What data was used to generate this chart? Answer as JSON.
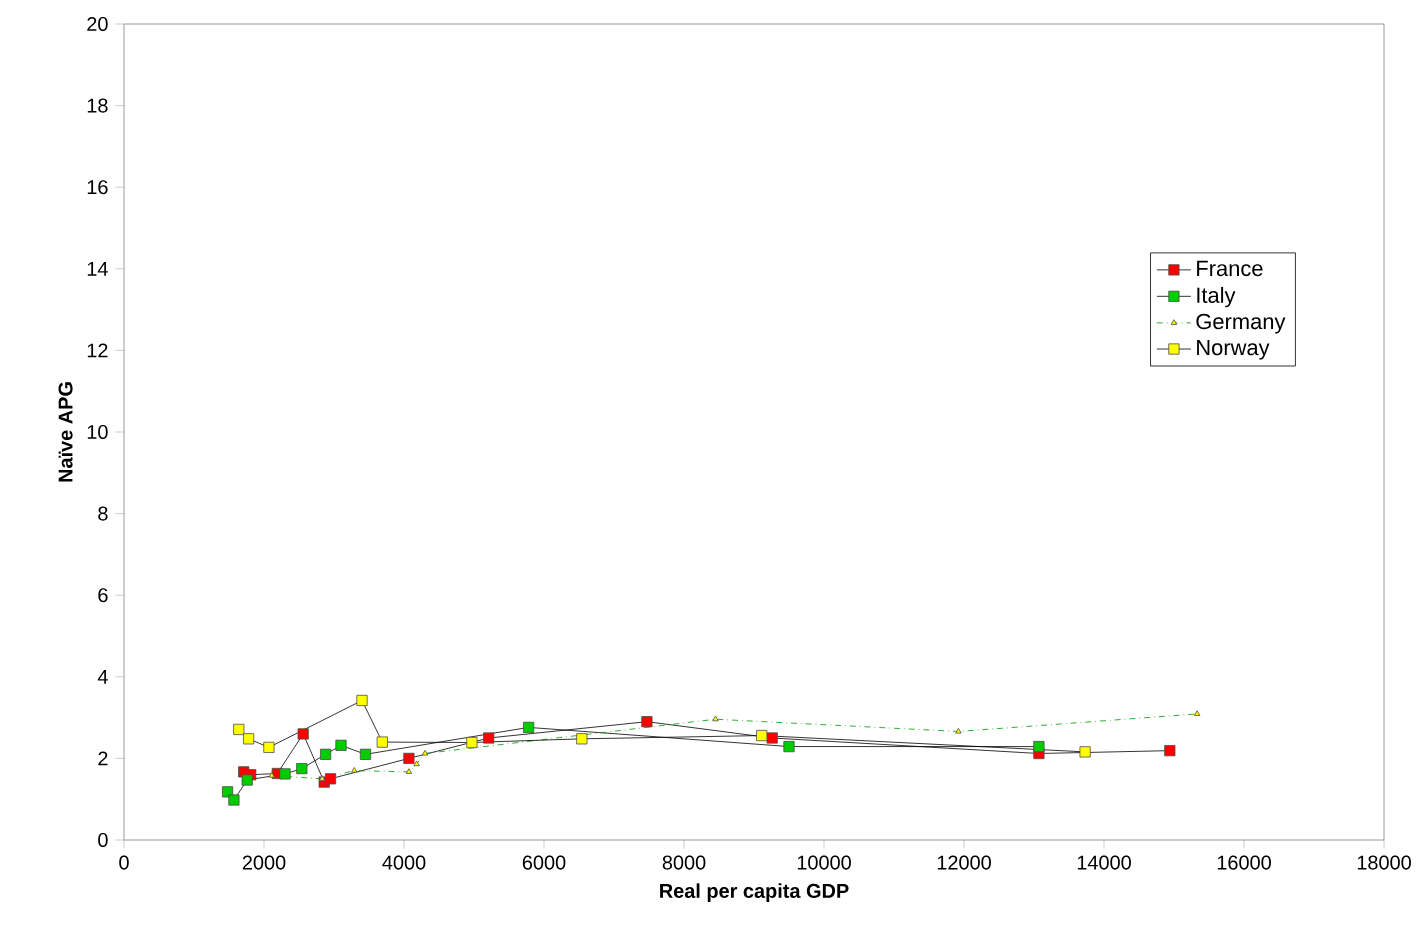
{
  "chart_data": {
    "type": "line",
    "xlabel": "Real per capita GDP",
    "ylabel": "Naïve APG",
    "xlim": [
      0,
      18000
    ],
    "xticks": [
      0,
      2000,
      4000,
      6000,
      8000,
      10000,
      12000,
      14000,
      16000,
      18000
    ],
    "ylim": [
      0,
      20
    ],
    "yticks": [
      0,
      2,
      4,
      6,
      8,
      10,
      12,
      14,
      16,
      18,
      20
    ],
    "grid": false,
    "legend": "right",
    "series": [
      {
        "name": "France",
        "color": "#ff0000",
        "marker": "square",
        "line_style": "solid",
        "x": [
          1710,
          1810,
          2190,
          2560,
          2860,
          2950,
          4070,
          5210,
          7470,
          9260,
          13070,
          14940
        ],
        "values": [
          1.67,
          1.6,
          1.63,
          2.6,
          1.42,
          1.5,
          2.0,
          2.5,
          2.9,
          2.5,
          2.12,
          2.19
        ]
      },
      {
        "name": "Italy",
        "color": "#00cc00",
        "marker": "square",
        "line_style": "solid",
        "x": [
          1480,
          1570,
          1760,
          2300,
          2540,
          2880,
          3100,
          3450,
          5780,
          9500,
          13070
        ],
        "values": [
          1.18,
          0.98,
          1.47,
          1.62,
          1.75,
          2.1,
          2.32,
          2.1,
          2.76,
          2.29,
          2.29
        ]
      },
      {
        "name": "Germany",
        "color": "#ffff00",
        "marker": "triangle",
        "line_style": "dashed",
        "x": [
          2110,
          2830,
          3290,
          4070,
          4180,
          4300,
          8450,
          11920,
          15330
        ],
        "values": [
          1.58,
          1.5,
          1.7,
          1.67,
          1.86,
          2.12,
          2.96,
          2.66,
          3.09
        ]
      },
      {
        "name": "Norway",
        "color": "#ffff00",
        "marker": "square",
        "line_style": "solid",
        "x": [
          1640,
          1780,
          2070,
          3400,
          3690,
          4970,
          6540,
          9110,
          13730
        ],
        "values": [
          2.71,
          2.48,
          2.27,
          3.42,
          2.4,
          2.39,
          2.48,
          2.56,
          2.16
        ]
      }
    ]
  }
}
